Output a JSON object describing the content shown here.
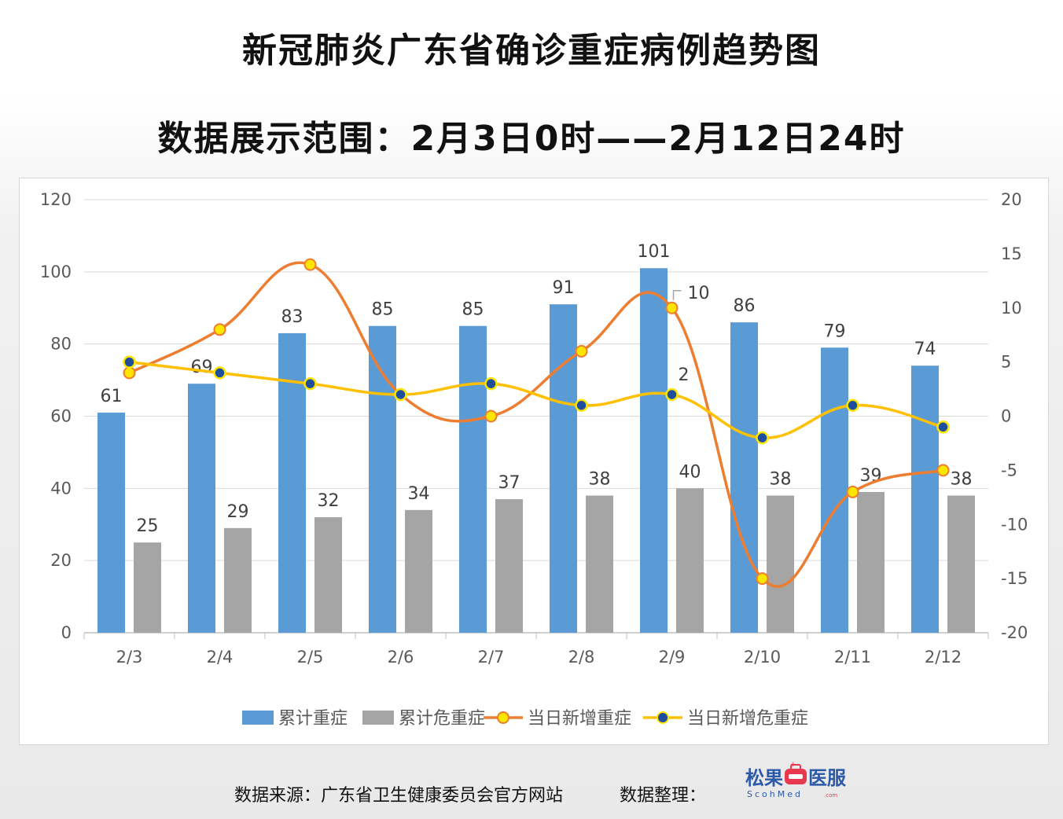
{
  "title": "新冠肺炎广东省确诊重症病例趋势图",
  "subtitle": "数据展示范围：2月3日0时——2月12日24时",
  "footer": {
    "source": "数据来源：广东省卫生健康委员会官方网站",
    "arranged_by": "数据整理：",
    "brand": {
      "name_left": "松果",
      "name_right": "医服",
      "sub": "ScohMed",
      "sub_domain": ".com"
    }
  },
  "colors": {
    "bar_severe": "#5b9bd5",
    "bar_critical": "#a5a5a5",
    "line_new_severe": "#ed7d31",
    "line_new_critical": "#ffc000",
    "marker_yellow": "#ffe600",
    "marker_blue": "#1f4e9c",
    "grid": "#d9d9d9",
    "text": "#595959"
  },
  "chart_data": {
    "type": "bar",
    "categories": [
      "2/3",
      "2/4",
      "2/5",
      "2/6",
      "2/7",
      "2/8",
      "2/9",
      "2/10",
      "2/11",
      "2/12"
    ],
    "y_left": {
      "min": 0,
      "max": 120,
      "ticks": [
        0,
        20,
        40,
        60,
        80,
        100,
        120
      ]
    },
    "y_right": {
      "min": -20,
      "max": 20,
      "ticks": [
        -20,
        -15,
        -10,
        -5,
        0,
        5,
        10,
        15,
        20
      ]
    },
    "grid": true,
    "legend_position": "bottom",
    "series": [
      {
        "name": "累计重症",
        "type": "bar",
        "axis": "left",
        "values": [
          61,
          69,
          83,
          85,
          85,
          91,
          101,
          86,
          79,
          74
        ]
      },
      {
        "name": "累计危重症",
        "type": "bar",
        "axis": "left",
        "values": [
          25,
          29,
          32,
          34,
          37,
          38,
          40,
          38,
          39,
          38
        ]
      },
      {
        "name": "当日新增重症",
        "type": "line",
        "axis": "right",
        "smooth": true,
        "values": [
          4,
          8,
          14,
          2,
          0,
          6,
          10,
          -15,
          -7,
          -5
        ]
      },
      {
        "name": "当日新增危重症",
        "type": "line",
        "axis": "right",
        "smooth": true,
        "values": [
          5,
          4,
          3,
          2,
          3,
          1,
          2,
          -2,
          1,
          -1
        ]
      }
    ],
    "point_labels": [
      {
        "series": "当日新增重症",
        "category": "2/9",
        "text": "10"
      },
      {
        "series": "当日新增危重症",
        "category": "2/9",
        "text": "2"
      }
    ]
  }
}
